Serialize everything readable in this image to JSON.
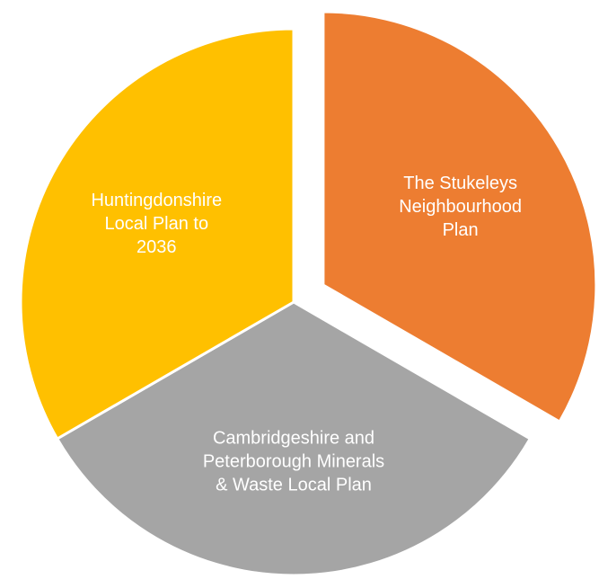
{
  "chart_data": {
    "type": "pie",
    "title": "",
    "exploded": true,
    "slices": [
      {
        "name": "The Stukeleys Neighbourhood Plan",
        "label_lines": [
          "The Stukeleys",
          "Neighbourhood",
          "Plan"
        ],
        "value": 33.3,
        "color": "#ED7D31"
      },
      {
        "name": "Cambridgeshire and Peterborough Minerals & Waste Local Plan",
        "label_lines": [
          "Cambridgeshire and",
          "Peterborough Minerals",
          "& Waste Local Plan"
        ],
        "value": 33.3,
        "color": "#A5A5A5"
      },
      {
        "name": "Huntingdonshire Local Plan to 2036",
        "label_lines": [
          "Huntingdonshire",
          "Local Plan to",
          "2036"
        ],
        "value": 33.3,
        "color": "#FFC000"
      }
    ]
  }
}
